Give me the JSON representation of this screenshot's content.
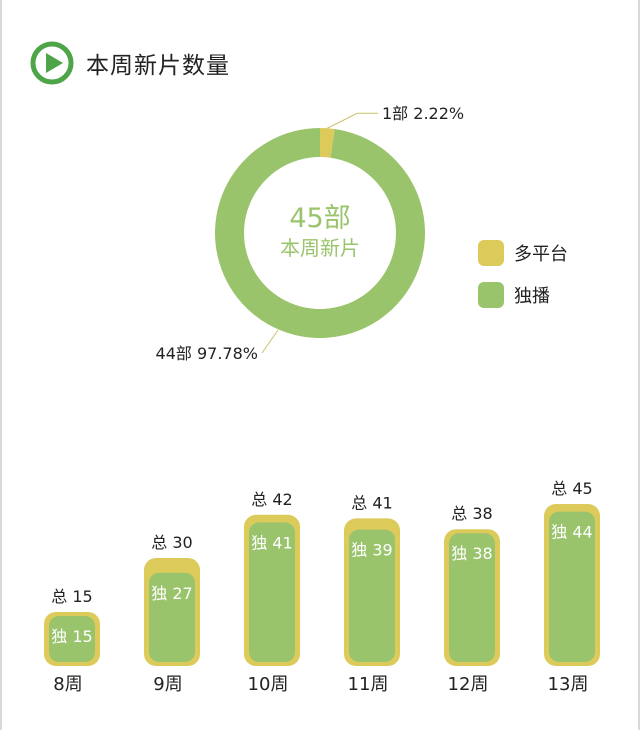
{
  "header": {
    "title": "本周新片数量"
  },
  "colors": {
    "green": "#9ac46c",
    "yellow": "#dccb5a",
    "icon_green": "#4da548",
    "callout_line": "#c9c16a"
  },
  "chart_data": [
    {
      "type": "pie",
      "subtype": "donut",
      "center_value": "45部",
      "center_label": "本周新片",
      "slices": [
        {
          "name": "多平台",
          "value": 1,
          "label": "1部",
          "percent": "2.22%",
          "color": "#dccb5a"
        },
        {
          "name": "独播",
          "value": 44,
          "label": "44部",
          "percent": "97.78%",
          "color": "#9ac46c"
        }
      ],
      "legend": {
        "position": "right",
        "items": [
          "多平台",
          "独播"
        ]
      }
    },
    {
      "type": "bar",
      "categories": [
        "8周",
        "9周",
        "10周",
        "11周",
        "12周",
        "13周"
      ],
      "series": [
        {
          "name": "总",
          "values": [
            15,
            30,
            42,
            41,
            38,
            45
          ],
          "color": "#dccb5a"
        },
        {
          "name": "独",
          "values": [
            15,
            27,
            41,
            39,
            38,
            44
          ],
          "color": "#9ac46c"
        }
      ],
      "total_prefix": "总",
      "exclusive_prefix": "独"
    }
  ]
}
